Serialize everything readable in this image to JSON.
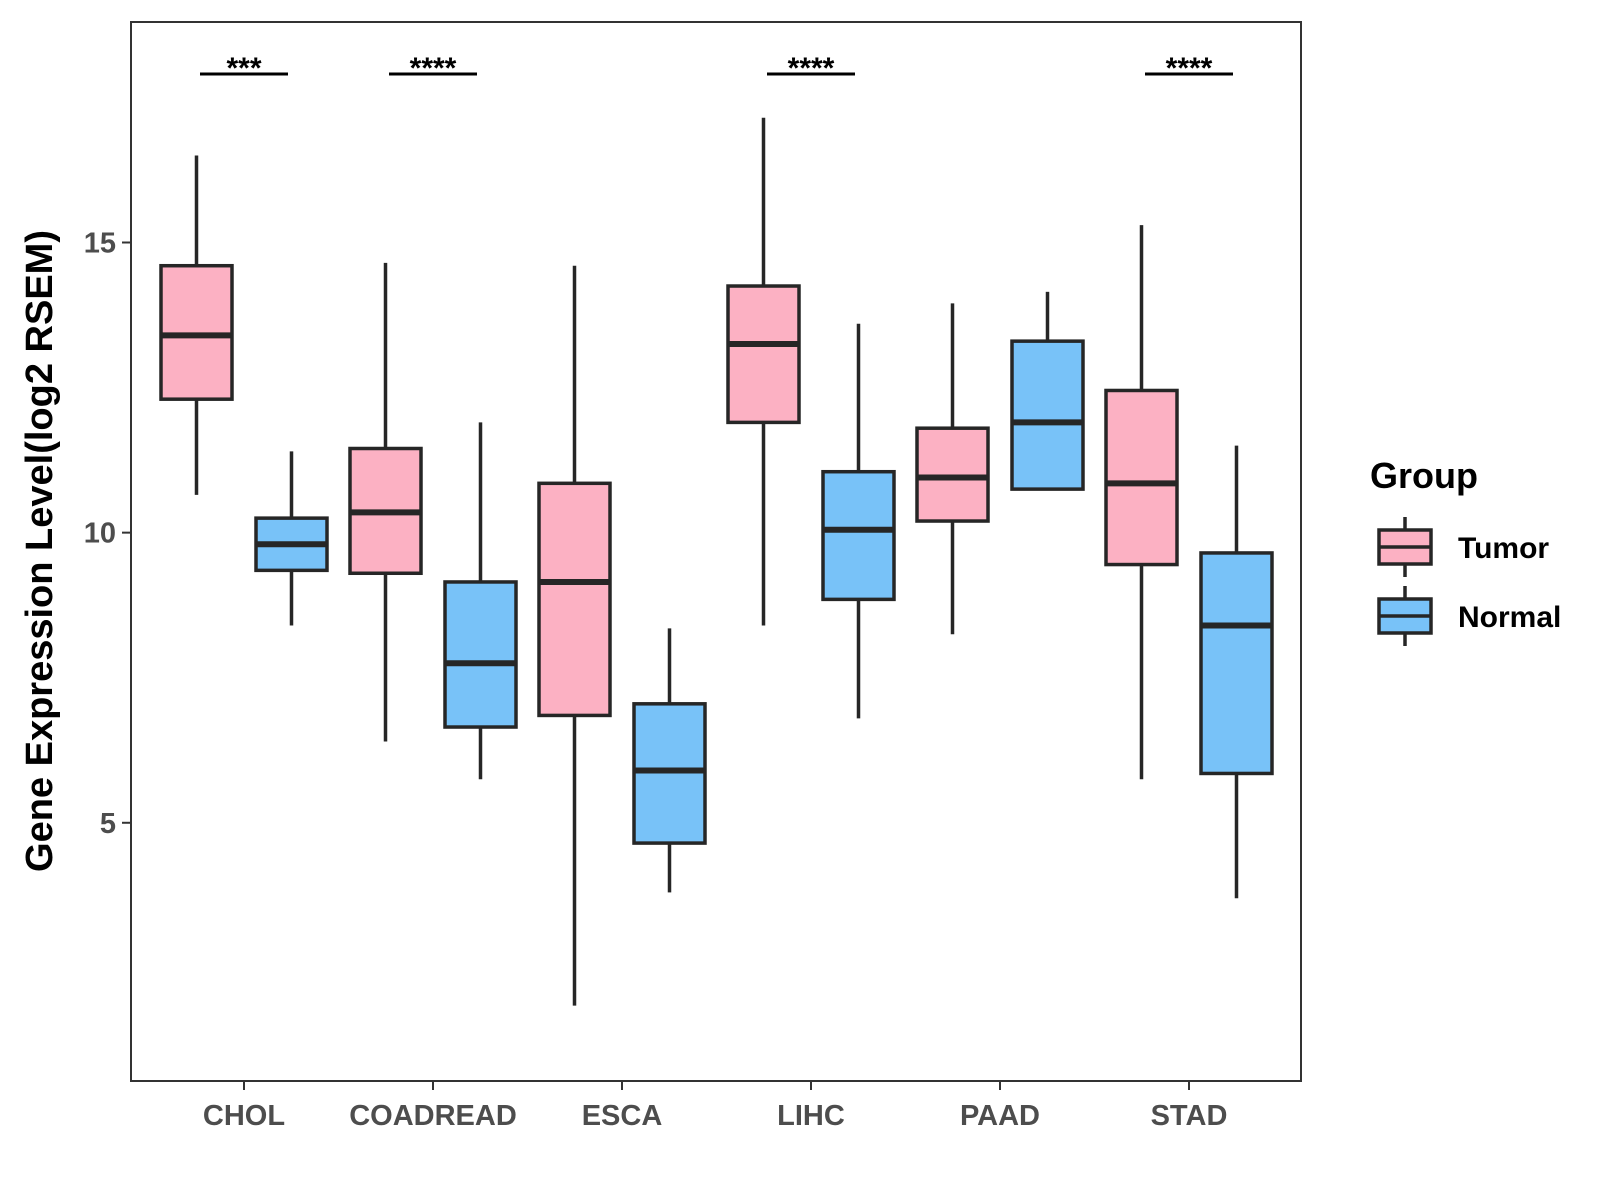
{
  "chart_data": {
    "type": "boxplot",
    "title": "",
    "xlabel": "",
    "ylabel": "Gene Expression Level(log2 RSEM)",
    "ylim": [
      0.55,
      18.8
    ],
    "yticks": [
      5,
      10,
      15
    ],
    "categories": [
      "CHOL",
      "COADREAD",
      "ESCA",
      "LIHC",
      "PAAD",
      "STAD"
    ],
    "legend": {
      "title": "Group",
      "position": "right",
      "entries": [
        {
          "name": "Tumor",
          "color": "#FCB1C3"
        },
        {
          "name": "Normal",
          "color": "#78C2F8"
        }
      ]
    },
    "series": [
      {
        "name": "Tumor",
        "color": "#FCB1C3",
        "boxes": [
          {
            "min": 10.65,
            "q1": 12.3,
            "median": 13.4,
            "q3": 14.6,
            "max": 16.5
          },
          {
            "min": 6.4,
            "q1": 9.3,
            "median": 10.35,
            "q3": 11.45,
            "max": 14.65
          },
          {
            "min": 1.85,
            "q1": 6.85,
            "median": 9.15,
            "q3": 10.85,
            "max": 14.6
          },
          {
            "min": 8.4,
            "q1": 11.9,
            "median": 13.25,
            "q3": 14.25,
            "max": 17.15
          },
          {
            "min": 8.25,
            "q1": 10.2,
            "median": 10.95,
            "q3": 11.8,
            "max": 13.95
          },
          {
            "min": 5.75,
            "q1": 9.45,
            "median": 10.85,
            "q3": 12.45,
            "max": 15.3
          }
        ]
      },
      {
        "name": "Normal",
        "color": "#78C2F8",
        "boxes": [
          {
            "min": 8.4,
            "q1": 9.35,
            "median": 9.8,
            "q3": 10.25,
            "max": 11.4
          },
          {
            "min": 5.75,
            "q1": 6.65,
            "median": 7.75,
            "q3": 9.15,
            "max": 11.9
          },
          {
            "min": 3.8,
            "q1": 4.65,
            "median": 5.9,
            "q3": 7.05,
            "max": 8.35
          },
          {
            "min": 6.8,
            "q1": 8.85,
            "median": 10.05,
            "q3": 11.05,
            "max": 13.6
          },
          {
            "min": 10.75,
            "q1": 10.75,
            "median": 11.9,
            "q3": 13.3,
            "max": 14.15
          },
          {
            "min": 3.7,
            "q1": 5.85,
            "median": 8.4,
            "q3": 9.65,
            "max": 11.5
          }
        ]
      }
    ],
    "significance": [
      {
        "category": "CHOL",
        "label": "***"
      },
      {
        "category": "COADREAD",
        "label": "****"
      },
      {
        "category": "LIHC",
        "label": "****"
      },
      {
        "category": "STAD",
        "label": "****"
      }
    ]
  }
}
